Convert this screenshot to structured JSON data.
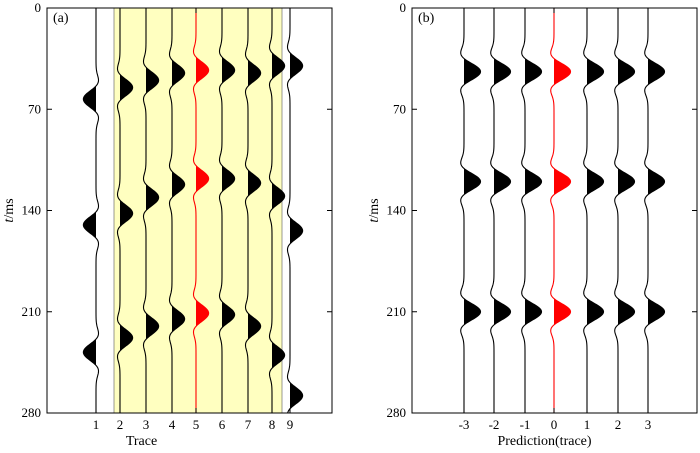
{
  "chart_data": [
    {
      "panel": "(a)",
      "type": "line",
      "xlabel": "Trace",
      "ylabel": "t/ms",
      "ylabel_italic": "t",
      "ylabel_unit": "/ms",
      "ylim": [
        0,
        280
      ],
      "y_inverted": true,
      "yticks": [
        0,
        70,
        140,
        210,
        280
      ],
      "xticks": [
        "1",
        "2",
        "3",
        "4",
        "5",
        "6",
        "7",
        "8",
        "9"
      ],
      "highlight_traces": [
        "2",
        "8"
      ],
      "highlight_color": "#ffffc0",
      "center_trace": "5",
      "center_color": "#ff0000",
      "event_color": "#000000",
      "traces": [
        {
          "label": "1",
          "events": [
            {
              "t": 63,
              "a": -1
            },
            {
              "t": 150,
              "a": -1
            },
            {
              "t": 238,
              "a": -1
            }
          ]
        },
        {
          "label": "2",
          "events": [
            {
              "t": 55,
              "a": 1
            },
            {
              "t": 142,
              "a": 1
            },
            {
              "t": 228,
              "a": 1
            }
          ]
        },
        {
          "label": "3",
          "events": [
            {
              "t": 50,
              "a": 1
            },
            {
              "t": 131,
              "a": 1
            },
            {
              "t": 220,
              "a": 1
            }
          ]
        },
        {
          "label": "4",
          "events": [
            {
              "t": 45,
              "a": 1
            },
            {
              "t": 122,
              "a": 1
            },
            {
              "t": 215,
              "a": 1
            }
          ]
        },
        {
          "label": "5",
          "events": [
            {
              "t": 43,
              "a": 1
            },
            {
              "t": 118,
              "a": 1
            },
            {
              "t": 211,
              "a": 1
            }
          ]
        },
        {
          "label": "6",
          "events": [
            {
              "t": 43,
              "a": 1
            },
            {
              "t": 118,
              "a": 1
            },
            {
              "t": 212,
              "a": 1
            }
          ]
        },
        {
          "label": "7",
          "events": [
            {
              "t": 45,
              "a": 1
            },
            {
              "t": 121,
              "a": 1
            },
            {
              "t": 220,
              "a": 1
            }
          ]
        },
        {
          "label": "8",
          "events": [
            {
              "t": 40,
              "a": 1
            },
            {
              "t": 130,
              "a": 1
            },
            {
              "t": 240,
              "a": 1
            }
          ]
        },
        {
          "label": "9",
          "events": [
            {
              "t": 40,
              "a": 1
            },
            {
              "t": 154,
              "a": 1
            },
            {
              "t": 268,
              "a": 1
            }
          ]
        }
      ]
    },
    {
      "panel": "(b)",
      "type": "line",
      "xlabel": "Prediction(trace)",
      "ylabel": "t/ms",
      "ylabel_italic": "t",
      "ylabel_unit": "/ms",
      "ylim": [
        0,
        280
      ],
      "y_inverted": true,
      "yticks": [
        0,
        70,
        140,
        210,
        280
      ],
      "xticks": [
        "-3",
        "-2",
        "-1",
        "0",
        "1",
        "2",
        "3"
      ],
      "center_trace": "0",
      "center_color": "#ff0000",
      "event_color": "#000000",
      "traces": [
        {
          "label": "-3",
          "events": [
            {
              "t": 44,
              "a": 1
            },
            {
              "t": 120,
              "a": 1
            },
            {
              "t": 210,
              "a": 1
            }
          ]
        },
        {
          "label": "-2",
          "events": [
            {
              "t": 44,
              "a": 1
            },
            {
              "t": 120,
              "a": 1
            },
            {
              "t": 210,
              "a": 1
            }
          ]
        },
        {
          "label": "-1",
          "events": [
            {
              "t": 44,
              "a": 1
            },
            {
              "t": 120,
              "a": 1
            },
            {
              "t": 210,
              "a": 1
            }
          ]
        },
        {
          "label": "0",
          "events": [
            {
              "t": 44,
              "a": 1
            },
            {
              "t": 120,
              "a": 1
            },
            {
              "t": 210,
              "a": 1
            }
          ]
        },
        {
          "label": "1",
          "events": [
            {
              "t": 44,
              "a": 1
            },
            {
              "t": 120,
              "a": 1
            },
            {
              "t": 210,
              "a": 1
            }
          ]
        },
        {
          "label": "2",
          "events": [
            {
              "t": 44,
              "a": 1
            },
            {
              "t": 120,
              "a": 1
            },
            {
              "t": 210,
              "a": 1
            }
          ]
        },
        {
          "label": "3",
          "events": [
            {
              "t": 44,
              "a": 1
            },
            {
              "t": 120,
              "a": 1
            },
            {
              "t": 210,
              "a": 1
            }
          ]
        }
      ]
    }
  ]
}
